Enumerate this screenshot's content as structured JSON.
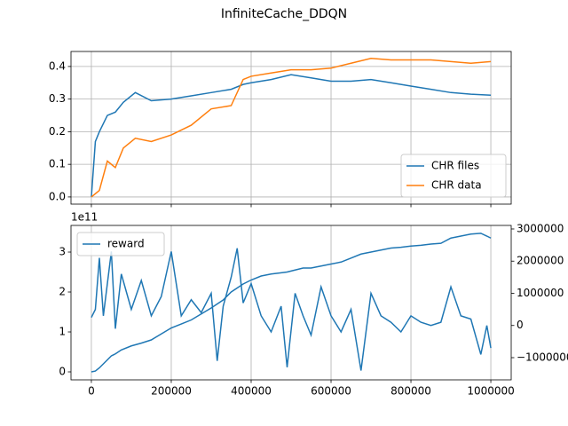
{
  "title": "InfiniteCache_DDQN",
  "chart_data": [
    {
      "type": "line",
      "x": [
        0,
        10000,
        20000,
        40000,
        60000,
        80000,
        110000,
        150000,
        200000,
        250000,
        300000,
        350000,
        380000,
        400000,
        450000,
        500000,
        550000,
        600000,
        650000,
        700000,
        750000,
        800000,
        850000,
        900000,
        950000,
        1000000
      ],
      "series": [
        {
          "name": "CHR files",
          "color": "#1f77b4",
          "values": [
            0,
            0.17,
            0.2,
            0.25,
            0.26,
            0.29,
            0.32,
            0.295,
            0.3,
            0.31,
            0.32,
            0.33,
            0.345,
            0.35,
            0.36,
            0.375,
            0.365,
            0.355,
            0.355,
            0.36,
            0.35,
            0.34,
            0.33,
            0.32,
            0.315,
            0.312
          ]
        },
        {
          "name": "CHR data",
          "color": "#ff7f0e",
          "values": [
            0,
            0.01,
            0.02,
            0.11,
            0.09,
            0.15,
            0.18,
            0.17,
            0.19,
            0.22,
            0.27,
            0.28,
            0.36,
            0.37,
            0.38,
            0.39,
            0.39,
            0.395,
            0.41,
            0.425,
            0.42,
            0.42,
            0.42,
            0.415,
            0.41,
            0.415
          ]
        }
      ],
      "xlim": [
        -51000,
        1051000
      ],
      "xticks": [
        0,
        200000,
        400000,
        600000,
        800000,
        1000000
      ],
      "xtick_labels": false,
      "ylim": [
        -0.022,
        0.446
      ],
      "yticks": [
        {
          "value": 0,
          "label": "0.0"
        },
        0.1,
        0.2,
        0.3,
        0.4
      ],
      "grid": true,
      "legend": "lower right"
    },
    {
      "type": "line",
      "x": [
        0,
        10000,
        20000,
        30000,
        40000,
        50000,
        60000,
        75000,
        100000,
        125000,
        150000,
        175000,
        200000,
        225000,
        250000,
        275000,
        300000,
        315000,
        330000,
        350000,
        365000,
        380000,
        400000,
        425000,
        450000,
        475000,
        490000,
        510000,
        530000,
        550000,
        575000,
        600000,
        625000,
        650000,
        675000,
        700000,
        725000,
        750000,
        775000,
        800000,
        825000,
        850000,
        875000,
        900000,
        925000,
        950000,
        975000,
        990000,
        1000000
      ],
      "series": [
        {
          "name": "reward",
          "color": "#1f77b4",
          "values": [
            0,
            2000000000.0,
            10000000000.0,
            20000000000.0,
            30000000000.0,
            40000000000.0,
            45000000000.0,
            55000000000.0,
            65000000000.0,
            72000000000.0,
            80000000000.0,
            95000000000.0,
            110000000000.0,
            120000000000.0,
            130000000000.0,
            145000000000.0,
            160000000000.0,
            170000000000.0,
            180000000000.0,
            200000000000.0,
            210000000000.0,
            220000000000.0,
            230000000000.0,
            240000000000.0,
            245000000000.0,
            248000000000.0,
            250000000000.0,
            255000000000.0,
            260000000000.0,
            260000000000.0,
            265000000000.0,
            270000000000.0,
            275000000000.0,
            285000000000.0,
            295000000000.0,
            300000000000.0,
            305000000000.0,
            310000000000.0,
            312000000000.0,
            315000000000.0,
            317000000000.0,
            320000000000.0,
            322000000000.0,
            335000000000.0,
            340000000000.0,
            345000000000.0,
            347000000000.0,
            340000000000.0,
            335000000000.0
          ]
        },
        {
          "color": "#1f77b4",
          "axis": "y2",
          "values": [
            250000,
            500000,
            2100000,
            300000,
            1300000,
            2300000,
            -100000,
            1600000,
            500000,
            1400000,
            300000,
            900000,
            2300000,
            300000,
            800000,
            400000,
            1000000,
            -1100000,
            600000,
            1500000,
            2400000,
            700000,
            1300000,
            300000,
            -200000,
            600000,
            -1300000,
            1000000,
            300000,
            -300000,
            1200000,
            300000,
            -200000,
            500000,
            -1400000,
            1000000,
            300000,
            100000,
            -200000,
            300000,
            100000,
            0,
            100000,
            1200000,
            300000,
            200000,
            -900000,
            0,
            -700000
          ]
        }
      ],
      "xlim": [
        -51000,
        1051000
      ],
      "xticks": [
        0,
        200000,
        400000,
        600000,
        800000,
        1000000
      ],
      "ylim": [
        -20000000000.0,
        366700000000.0
      ],
      "yticks": [
        0,
        {
          "value": 100000000000.0,
          "label": "1"
        },
        {
          "value": 200000000000.0,
          "label": "2"
        },
        {
          "value": 300000000000.0,
          "label": "3"
        }
      ],
      "y_offset_text": "1e11",
      "y2lim": [
        -1690000,
        3110000
      ],
      "y2ticks": [
        {
          "value": -1000000,
          "label": "−1000000"
        },
        0,
        1000000,
        2000000,
        3000000
      ],
      "grid": "x",
      "legend": "upper left"
    }
  ]
}
